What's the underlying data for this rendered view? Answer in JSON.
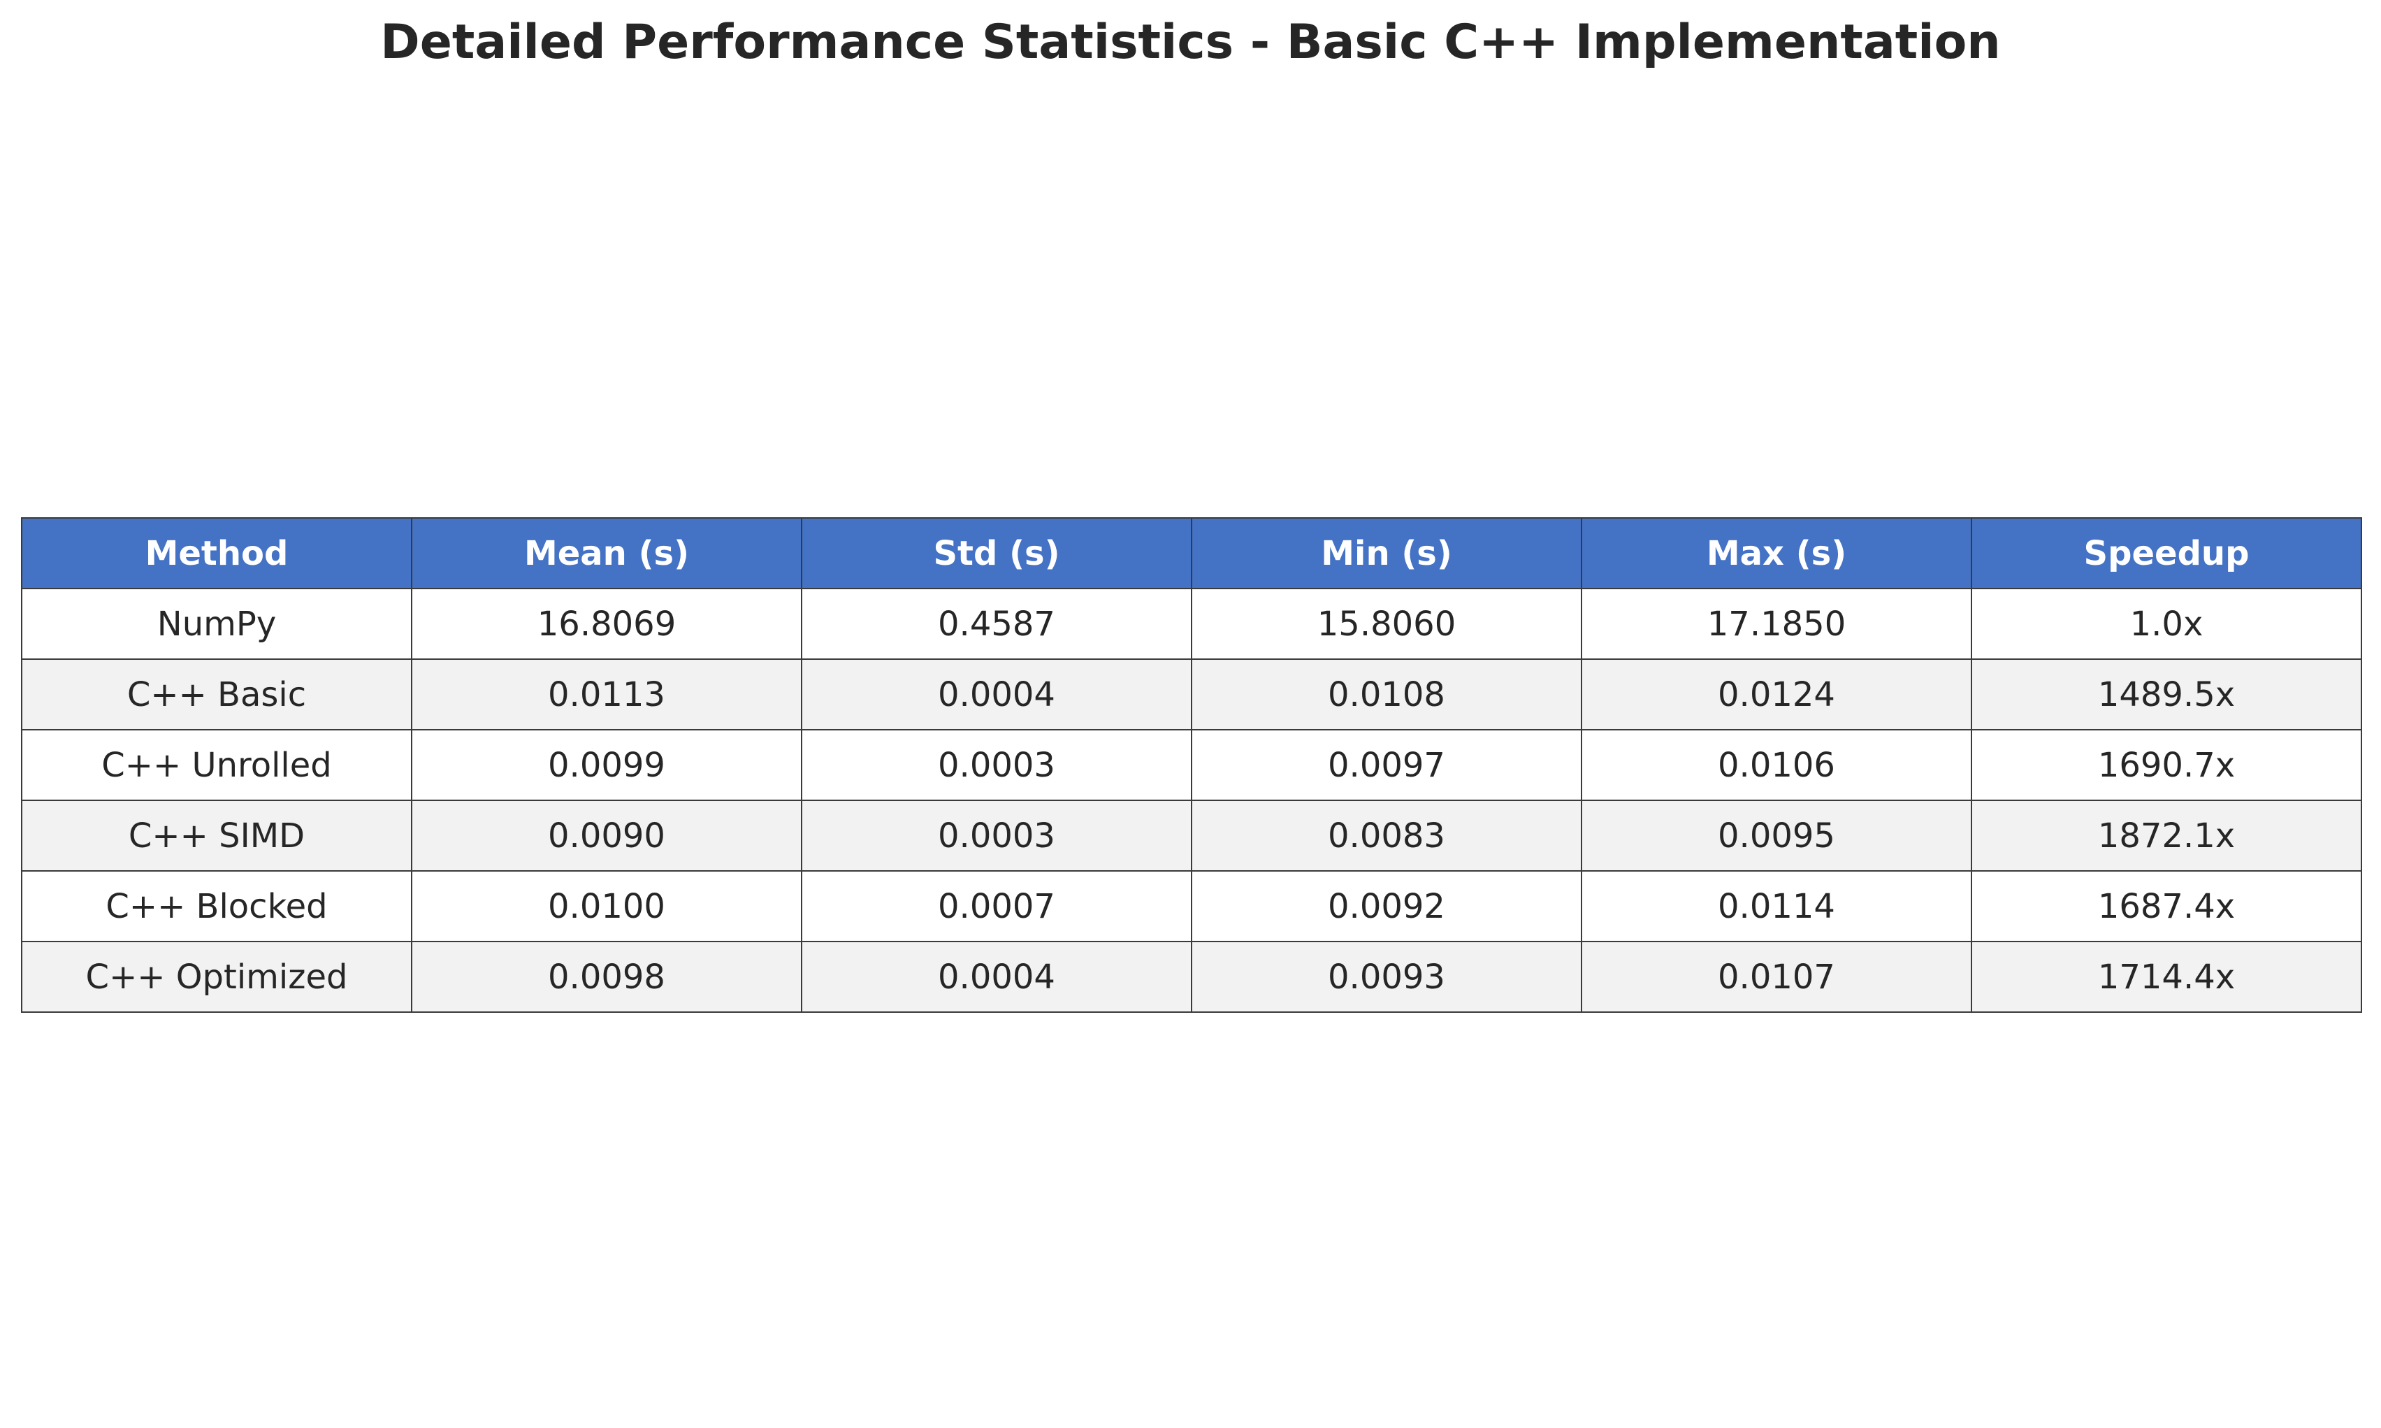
{
  "chart_data": {
    "type": "table",
    "title": "Detailed Performance Statistics - Basic C++ Implementation",
    "columns": [
      "Method",
      "Mean (s)",
      "Std (s)",
      "Min (s)",
      "Max (s)",
      "Speedup"
    ],
    "rows": [
      [
        "NumPy",
        "16.8069",
        "0.4587",
        "15.8060",
        "17.1850",
        "1.0x"
      ],
      [
        "C++ Basic",
        "0.0113",
        "0.0004",
        "0.0108",
        "0.0124",
        "1489.5x"
      ],
      [
        "C++ Unrolled",
        "0.0099",
        "0.0003",
        "0.0097",
        "0.0106",
        "1690.7x"
      ],
      [
        "C++ SIMD",
        "0.0090",
        "0.0003",
        "0.0083",
        "0.0095",
        "1872.1x"
      ],
      [
        "C++ Blocked",
        "0.0100",
        "0.0007",
        "0.0092",
        "0.0114",
        "1687.4x"
      ],
      [
        "C++ Optimized",
        "0.0098",
        "0.0004",
        "0.0093",
        "0.0107",
        "1714.4x"
      ]
    ],
    "header_color": "#4472c4",
    "header_text_color": "#ffffff",
    "row_colors": [
      "#ffffff",
      "#f2f2f2"
    ],
    "border_color": "#3a3a3a"
  }
}
